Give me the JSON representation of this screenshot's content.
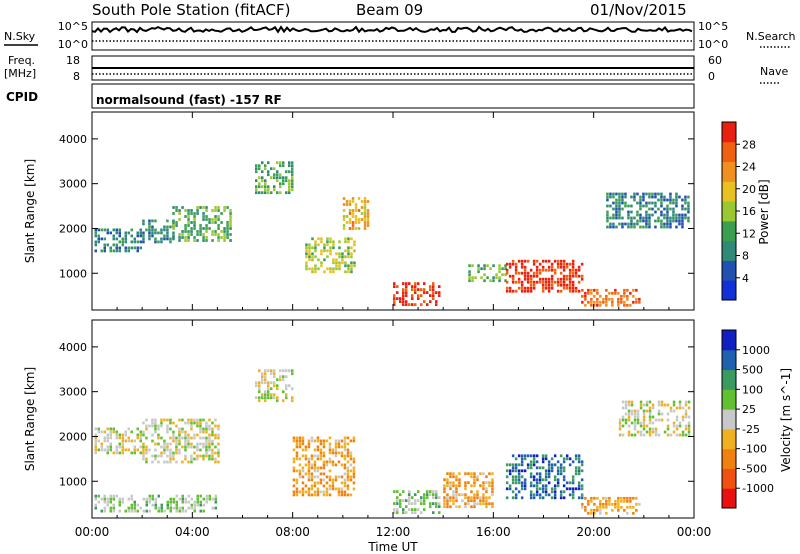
{
  "header": {
    "station": "South Pole Station (fitACF)",
    "beam": "Beam 09",
    "date": "01/Nov/2015"
  },
  "strips": {
    "nsky": {
      "label": "N.Sky",
      "top": "10^5",
      "bottom": "10^0"
    },
    "nsearch": {
      "label": "N.Search",
      "top": "10^5",
      "bottom": "10^0"
    },
    "freq": {
      "label_line1": "Freq.",
      "label_line2": "[MHz]",
      "top": "18",
      "bottom": "8"
    },
    "nave": {
      "label": "Nave",
      "top": "60",
      "bottom": "0"
    },
    "cpid": {
      "label": "CPID",
      "value": "normalsound (fast) -157 RF"
    }
  },
  "chart_data": [
    {
      "type": "heatmap",
      "name": "power-panel",
      "ylabel": "Slant Range [km]",
      "xlabel": "",
      "x_ticks": [
        "00:00",
        "04:00",
        "08:00",
        "12:00",
        "16:00",
        "20:00",
        "00:00"
      ],
      "x_range_hours": [
        0,
        24
      ],
      "y_ticks": [
        1000,
        2000,
        3000,
        4000
      ],
      "ylim": [
        180,
        4600
      ],
      "colorbar": {
        "label": "Power [dB]",
        "ticks": [
          "28",
          "24",
          "20",
          "16",
          "12",
          "8",
          "4"
        ],
        "range": [
          0,
          30
        ],
        "colors": [
          "#1030d8",
          "#2050b0",
          "#2f8a78",
          "#3aa050",
          "#9ac830",
          "#e8c020",
          "#f09020",
          "#f06010",
          "#e82010"
        ]
      },
      "echo_regions": [
        {
          "t": [
            0.1,
            2.0
          ],
          "range": [
            1500,
            2000
          ],
          "power": 8
        },
        {
          "t": [
            2.0,
            3.2
          ],
          "range": [
            1700,
            2200
          ],
          "power": 8
        },
        {
          "t": [
            3.2,
            5.5
          ],
          "range": [
            1700,
            2500
          ],
          "power": 12
        },
        {
          "t": [
            6.5,
            8.0
          ],
          "range": [
            2800,
            3500
          ],
          "power": 12
        },
        {
          "t": [
            8.5,
            10.5
          ],
          "range": [
            1000,
            1800
          ],
          "power": 16
        },
        {
          "t": [
            10.0,
            11.0
          ],
          "range": [
            2000,
            2700
          ],
          "power": 20
        },
        {
          "t": [
            12.0,
            13.8
          ],
          "range": [
            300,
            800
          ],
          "power": 28
        },
        {
          "t": [
            15.0,
            16.5
          ],
          "range": [
            800,
            1200
          ],
          "power": 12
        },
        {
          "t": [
            16.5,
            19.5
          ],
          "range": [
            600,
            1300
          ],
          "power": 28
        },
        {
          "t": [
            19.5,
            21.8
          ],
          "range": [
            300,
            650
          ],
          "power": 24
        },
        {
          "t": [
            20.5,
            23.8
          ],
          "range": [
            2000,
            2800
          ],
          "power": 8
        }
      ]
    },
    {
      "type": "heatmap",
      "name": "velocity-panel",
      "ylabel": "Slant Range [km]",
      "xlabel": "Time UT",
      "x_ticks": [
        "00:00",
        "04:00",
        "08:00",
        "12:00",
        "16:00",
        "20:00",
        "00:00"
      ],
      "x_range_hours": [
        0,
        24
      ],
      "y_ticks": [
        1000,
        2000,
        3000,
        4000
      ],
      "ylim": [
        180,
        4600
      ],
      "colorbar": {
        "label": "Velocity [m s^-1]",
        "ticks": [
          "1000",
          "500",
          "100",
          "25",
          "-25",
          "-100",
          "-500",
          "-1000"
        ],
        "range": [
          -1000,
          1000
        ],
        "colors": [
          "#e81010",
          "#f05010",
          "#f08010",
          "#f0b020",
          "#c8c8c8",
          "#60c030",
          "#3a9a60",
          "#2060b0",
          "#1020c0"
        ]
      },
      "echo_regions": [
        {
          "t": [
            0.1,
            2.0
          ],
          "range": [
            1600,
            2200
          ],
          "velocity": 0
        },
        {
          "t": [
            2.0,
            5.0
          ],
          "range": [
            1400,
            2400
          ],
          "velocity": 0
        },
        {
          "t": [
            0.1,
            5.0
          ],
          "range": [
            300,
            700
          ],
          "velocity": 150
        },
        {
          "t": [
            6.5,
            8.0
          ],
          "range": [
            2800,
            3500
          ],
          "velocity": 0
        },
        {
          "t": [
            8.0,
            10.5
          ],
          "range": [
            700,
            2000
          ],
          "velocity": -300
        },
        {
          "t": [
            12.0,
            13.8
          ],
          "range": [
            300,
            800
          ],
          "velocity": 150
        },
        {
          "t": [
            14.0,
            16.0
          ],
          "range": [
            400,
            1200
          ],
          "velocity": -300
        },
        {
          "t": [
            16.5,
            19.5
          ],
          "range": [
            600,
            1600
          ],
          "velocity": 600
        },
        {
          "t": [
            19.5,
            21.8
          ],
          "range": [
            300,
            650
          ],
          "velocity": -300
        },
        {
          "t": [
            21.0,
            23.8
          ],
          "range": [
            2000,
            2800
          ],
          "velocity": 0
        }
      ]
    }
  ]
}
